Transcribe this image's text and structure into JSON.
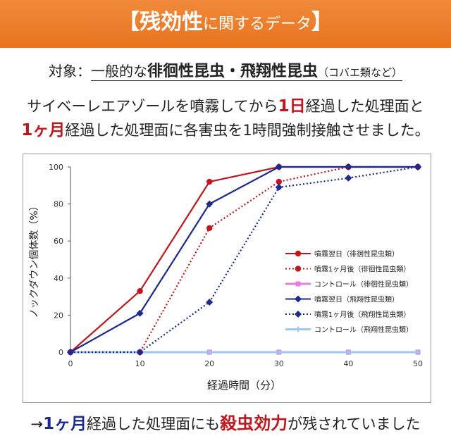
{
  "header": {
    "title_main": "【残効性",
    "title_small": "に関するデータ",
    "title_end": "】"
  },
  "subject": {
    "label": "対象：",
    "prefix": "一般的な",
    "insects": "徘徊性昆虫・飛翔性昆虫",
    "note": "（コバエ類など）"
  },
  "description": {
    "p1": "サイベーレエアゾールを噴霧してから",
    "p2": "1日",
    "p3": "経過した処理面と",
    "p4": "1ヶ月",
    "p5": "経過した処理面に各害虫を1時間強制接触させました。"
  },
  "conclusion": {
    "arrow": "→",
    "p1": "1ヶ月",
    "p2": "経過した処理面にも",
    "p3": "殺虫効力",
    "p4": "が残されていました"
  },
  "colors": {
    "banner": "#e8731f",
    "red": "#c0161d",
    "blue": "#1c2a8c",
    "pink": "#e67fe0",
    "lightblue": "#9fc8f0"
  },
  "chart_data": {
    "type": "line",
    "xlabel": "経過時間（分）",
    "ylabel": "ノックダウン個体数（%）",
    "x": [
      0,
      10,
      20,
      30,
      40,
      50
    ],
    "xlim": [
      0,
      50
    ],
    "ylim": [
      0,
      100
    ],
    "xticks": [
      0,
      10,
      20,
      30,
      40,
      50
    ],
    "yticks": [
      0,
      20,
      40,
      60,
      80,
      100
    ],
    "legend_position": "right",
    "series": [
      {
        "name": "噴霧翌日（徘徊性昆虫類）",
        "values": [
          0,
          33,
          92,
          100,
          100,
          100
        ],
        "color": "#c0161d",
        "style": "solid",
        "marker": "circle"
      },
      {
        "name": "噴霧1ヶ月後（徘徊性昆虫類）",
        "values": [
          0,
          0,
          67,
          92,
          100,
          100
        ],
        "color": "#c0161d",
        "style": "dotted",
        "marker": "circle"
      },
      {
        "name": "コントロール（徘徊性昆虫類）",
        "values": [
          0,
          0,
          0,
          0,
          0,
          0
        ],
        "color": "#e67fe0",
        "style": "solid",
        "marker": "square"
      },
      {
        "name": "噴霧翌日（飛翔性昆虫類）",
        "values": [
          0,
          21,
          80,
          100,
          100,
          100
        ],
        "color": "#1c2a8c",
        "style": "solid",
        "marker": "diamond"
      },
      {
        "name": "噴霧1ヶ月後（飛翔性昆虫類）",
        "values": [
          0,
          0,
          27,
          89,
          94,
          100
        ],
        "color": "#1c2a8c",
        "style": "dotted",
        "marker": "diamond"
      },
      {
        "name": "コントロール（飛翔性昆虫類）",
        "values": [
          0,
          0,
          0,
          0,
          0,
          0
        ],
        "color": "#9fc8f0",
        "style": "solid",
        "marker": "star"
      }
    ]
  }
}
